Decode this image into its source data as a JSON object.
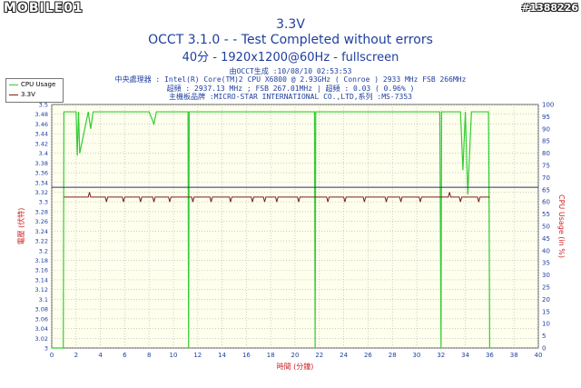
{
  "watermark": {
    "logo": "MOBILE01",
    "id": "#1388226"
  },
  "header": {
    "title_line1": "3.3V",
    "title_line2": "OCCT 3.1.0 -  - Test Completed without errors",
    "title_line3": "40分 - 1920x1200@60Hz - fullscreen",
    "info_line1": "由OCCT生成 :10/08/10 02:53:53",
    "info_line2": "中央處理器 : Intel(R) Core(TM)2 CPU X6800 @ 2.93GHz ( Conroe ) 2933 MHz FSB 266MHz",
    "info_line3": "超頻 : 2937.13 MHz ; FSB 267.01MHz | 超頻 : 0.03 ( 0.96% )",
    "info_line4": "主機板品牌 :MICRO-STAR INTERNATIONAL CO.,LTD,系列 :MS-7353"
  },
  "colors": {
    "cpu_usage": "#33cc33",
    "voltage": "#7a1f1f",
    "threshold": "#2a2a8a",
    "plot_bg": "#ffffee",
    "grid": "#b0b0b0",
    "axis_text": "#1f3f9e",
    "axis_label": "#cc2222"
  },
  "chart_data": {
    "type": "line",
    "xlabel": "時間 (分鐘)",
    "ylabel_left": "電壓 (伏特)",
    "ylabel_right": "CPU Usage (in %)",
    "xlim": [
      0,
      40
    ],
    "ylim_left": [
      3.0,
      3.5
    ],
    "ylim_right": [
      0,
      100
    ],
    "x_ticks": [
      0,
      2,
      4,
      6,
      8,
      10,
      12,
      14,
      16,
      18,
      20,
      22,
      24,
      26,
      28,
      30,
      32,
      34,
      36,
      38,
      40
    ],
    "y_left_ticks": [
      "3",
      "3.02",
      "3.04",
      "3.06",
      "3.08",
      "3.1",
      "3.12",
      "3.14",
      "3.16",
      "3.18",
      "3.2",
      "3.22",
      "3.24",
      "3.26",
      "3.28",
      "3.3",
      "3.32",
      "3.34",
      "3.36",
      "3.38",
      "3.4",
      "3.42",
      "3.44",
      "3.46",
      "3.48",
      "3.5"
    ],
    "y_right_ticks": [
      "0",
      "5",
      "10",
      "15",
      "20",
      "25",
      "30",
      "35",
      "40",
      "45",
      "50",
      "55",
      "60",
      "65",
      "70",
      "75",
      "80",
      "85",
      "90",
      "95",
      "100"
    ],
    "grid": true,
    "legend_position": "top-left",
    "series": [
      {
        "name": "CPU Usage",
        "axis": "right",
        "x": [
          0,
          0.95,
          1.0,
          1.05,
          2.0,
          2.1,
          2.2,
          2.3,
          3.0,
          3.2,
          3.4,
          4.0,
          5.0,
          6.0,
          7.0,
          8.0,
          8.4,
          8.6,
          9.0,
          9.5,
          10.0,
          11.0,
          11.2,
          11.25,
          11.3,
          12.0,
          13.0,
          14.0,
          15.0,
          16.0,
          17.0,
          18.0,
          19.0,
          20.0,
          21.0,
          21.6,
          21.65,
          21.7,
          22.5,
          23.0,
          24.0,
          25.0,
          26.0,
          27.0,
          28.0,
          29.0,
          30.0,
          31.0,
          31.9,
          32.0,
          32.05,
          33.0,
          33.6,
          33.8,
          34.0,
          34.2,
          34.5,
          35.0,
          35.5,
          35.9,
          35.95,
          36.0,
          36.1
        ],
        "values": [
          0,
          0,
          97,
          97,
          97,
          79,
          97,
          80,
          97,
          90,
          97,
          97,
          97,
          97,
          97,
          97,
          92,
          97,
          97,
          97,
          97,
          97,
          97,
          0,
          97,
          97,
          97,
          97,
          97,
          97,
          97,
          97,
          97,
          97,
          97,
          97,
          0,
          97,
          97,
          97,
          97,
          97,
          97,
          97,
          97,
          97,
          97,
          97,
          97,
          0,
          97,
          97,
          97,
          73,
          97,
          63,
          97,
          97,
          97,
          97,
          60,
          0,
          0
        ]
      },
      {
        "name": "3.3V",
        "axis": "left",
        "x": [
          1.0,
          3.0,
          3.1,
          3.2,
          4.0,
          4.4,
          4.5,
          4.6,
          5.8,
          5.9,
          6.0,
          7.2,
          7.3,
          7.4,
          8.3,
          8.4,
          8.5,
          9.6,
          9.7,
          9.8,
          11.5,
          11.6,
          11.7,
          13.0,
          13.1,
          13.2,
          14.6,
          14.7,
          14.8,
          16.4,
          16.5,
          16.6,
          17.4,
          17.5,
          17.6,
          18.4,
          18.5,
          18.6,
          20.2,
          20.3,
          20.4,
          22.6,
          22.7,
          22.8,
          24.0,
          24.1,
          24.2,
          25.6,
          25.7,
          25.8,
          27.4,
          27.5,
          27.6,
          28.6,
          28.7,
          28.8,
          30.2,
          30.3,
          30.4,
          32.6,
          32.7,
          32.8,
          33.5,
          33.6,
          33.7,
          35.0,
          35.1,
          35.2,
          36.0
        ],
        "values": [
          3.31,
          3.31,
          3.32,
          3.31,
          3.31,
          3.31,
          3.3,
          3.31,
          3.31,
          3.3,
          3.31,
          3.31,
          3.3,
          3.31,
          3.31,
          3.3,
          3.31,
          3.31,
          3.3,
          3.31,
          3.31,
          3.3,
          3.31,
          3.31,
          3.3,
          3.31,
          3.31,
          3.3,
          3.31,
          3.31,
          3.3,
          3.31,
          3.31,
          3.3,
          3.31,
          3.31,
          3.3,
          3.31,
          3.31,
          3.3,
          3.31,
          3.31,
          3.3,
          3.31,
          3.31,
          3.3,
          3.31,
          3.31,
          3.3,
          3.31,
          3.31,
          3.3,
          3.31,
          3.31,
          3.3,
          3.31,
          3.31,
          3.3,
          3.31,
          3.31,
          3.32,
          3.31,
          3.31,
          3.3,
          3.31,
          3.31,
          3.3,
          3.31,
          3.31
        ]
      }
    ],
    "reference_line": {
      "axis": "left",
      "value": 3.33
    }
  }
}
